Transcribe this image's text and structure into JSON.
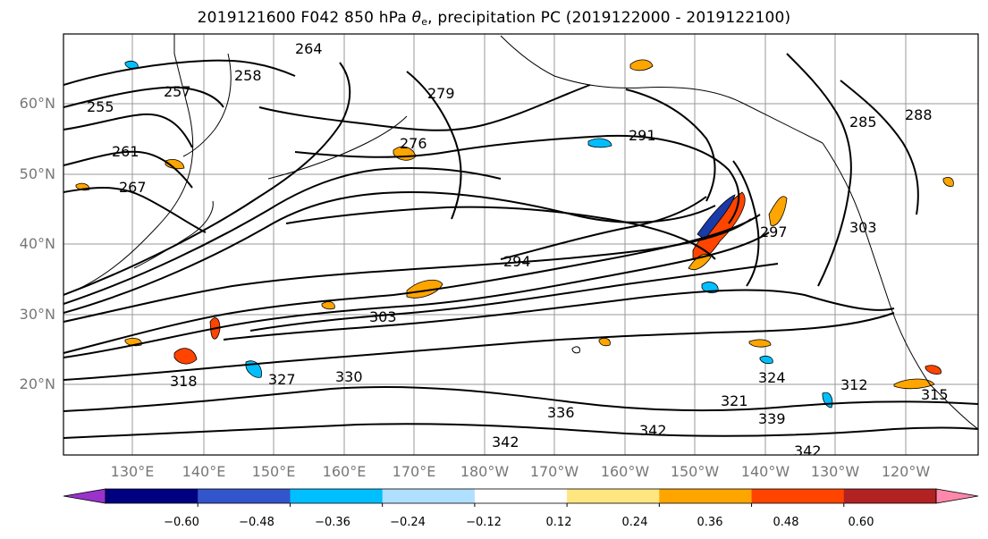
{
  "title": {
    "prefix": "2019121600 F042 850 hPa ",
    "theta_symbol": "θ",
    "theta_sub": "e",
    "suffix": ", precipitation PC (2019122000 - 2019122100)"
  },
  "map": {
    "lat_labels": [
      "60°N",
      "50°N",
      "40°N",
      "30°N",
      "20°N"
    ],
    "lon_labels": [
      "130°E",
      "140°E",
      "150°E",
      "160°E",
      "170°E",
      "180°W",
      "170°W",
      "160°W",
      "150°W",
      "140°W",
      "130°W",
      "120°W"
    ],
    "contour_labels": [
      "264",
      "255",
      "257",
      "258",
      "261",
      "267",
      "276",
      "279",
      "291",
      "294",
      "297",
      "303",
      "303",
      "312",
      "315",
      "318",
      "321",
      "324",
      "327",
      "330",
      "336",
      "339",
      "342",
      "342",
      "342",
      "285",
      "288"
    ]
  },
  "colorbar": {
    "colors": [
      "#9933cc",
      "#000080",
      "#3355cc",
      "#00bfff",
      "#b0e0ff",
      "#ffffff",
      "#ffe680",
      "#ffa500",
      "#ff4400",
      "#b22222",
      "#ff88aa"
    ],
    "tick_labels": [
      "−0.60",
      "−0.48",
      "−0.36",
      "−0.24",
      "−0.12",
      "0.12",
      "0.24",
      "0.36",
      "0.48",
      "0.60"
    ]
  }
}
